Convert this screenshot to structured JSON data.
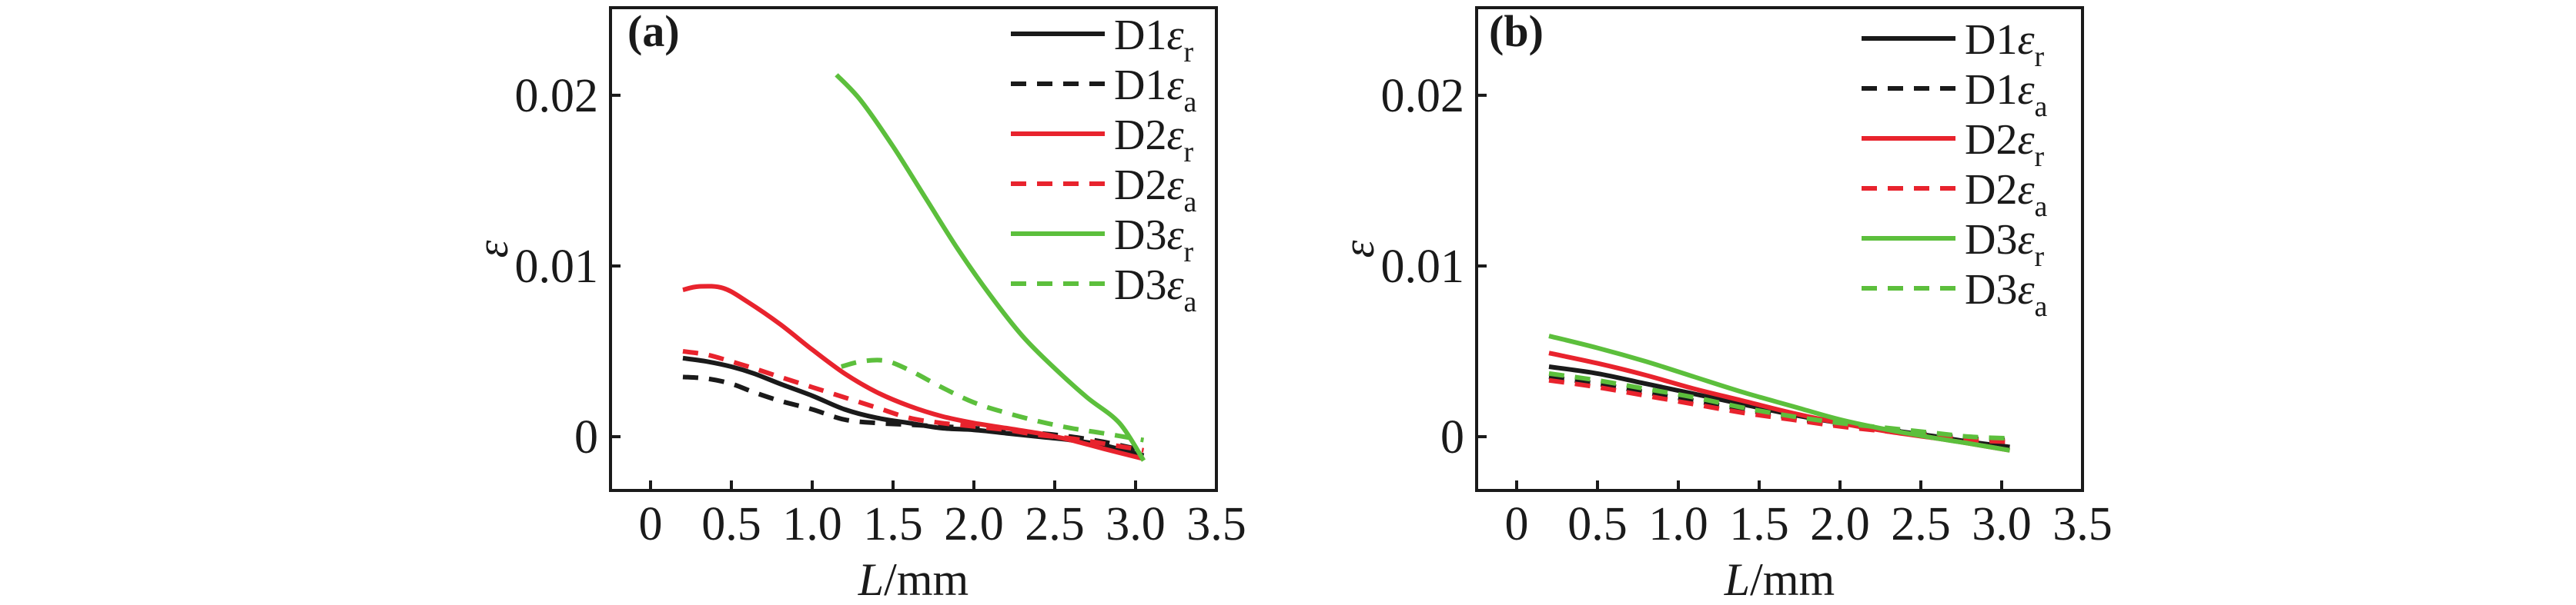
{
  "figure": {
    "background": "#ffffff",
    "text_color": "#1a1a1a",
    "accent_red": "#e8232d",
    "accent_green": "#5cbf3c",
    "accent_black": "#1a1a1a"
  },
  "chart_data": [
    {
      "type": "line",
      "panel_tag": "(a)",
      "title": "",
      "xlabel": "L/mm",
      "xlabel_parts": {
        "var": "L",
        "sep": "/",
        "unit": "mm"
      },
      "ylabel": "ε",
      "xlim": [
        -0.2476,
        3.5
      ],
      "ylim": [
        -0.00315,
        0.02513
      ],
      "grid": false,
      "legend_position": "top-right-inside",
      "xticks": {
        "values": [
          0,
          0.5,
          1.0,
          1.5,
          2.0,
          2.5,
          3.0,
          3.5
        ],
        "labels": [
          "0",
          "0.5",
          "1.0",
          "1.5",
          "2.0",
          "2.5",
          "3.0",
          "3.5"
        ]
      },
      "yticks": {
        "values": [
          0,
          0.01,
          0.02
        ],
        "labels": [
          "0",
          "0.01",
          "0.02"
        ]
      },
      "series": [
        {
          "name": "D1εr",
          "base": "D1",
          "symbol": "ε",
          "subscript": "r",
          "color": "#1a1a1a",
          "linestyle": "solid",
          "points": [
            [
              0.2,
              0.0046
            ],
            [
              0.35,
              0.0044
            ],
            [
              0.5,
              0.0041
            ],
            [
              0.64,
              0.0037
            ],
            [
              0.8,
              0.0031
            ],
            [
              1.0,
              0.0024
            ],
            [
              1.2,
              0.0016
            ],
            [
              1.4,
              0.0011
            ],
            [
              1.6,
              0.0008
            ],
            [
              1.8,
              0.0005
            ],
            [
              2.0,
              0.0004
            ],
            [
              2.2,
              0.0002
            ],
            [
              2.4,
              0.0
            ],
            [
              2.6,
              -0.0002
            ],
            [
              2.8,
              -0.0005
            ],
            [
              3.05,
              -0.0011
            ]
          ]
        },
        {
          "name": "D1εa",
          "base": "D1",
          "symbol": "ε",
          "subscript": "a",
          "color": "#1a1a1a",
          "linestyle": "dashed",
          "points": [
            [
              0.2,
              0.0035
            ],
            [
              0.35,
              0.0034
            ],
            [
              0.5,
              0.0031
            ],
            [
              0.64,
              0.0026
            ],
            [
              0.8,
              0.0021
            ],
            [
              1.0,
              0.0016
            ],
            [
              1.2,
              0.001
            ],
            [
              1.4,
              0.0008
            ],
            [
              1.6,
              0.0007
            ],
            [
              1.8,
              0.0006
            ],
            [
              2.0,
              0.0005
            ],
            [
              2.2,
              0.0003
            ],
            [
              2.4,
              0.0002
            ],
            [
              2.6,
              0.0
            ],
            [
              2.8,
              -0.0003
            ],
            [
              3.05,
              -0.0008
            ]
          ]
        },
        {
          "name": "D2εr",
          "base": "D2",
          "symbol": "ε",
          "subscript": "r",
          "color": "#e8232d",
          "linestyle": "solid",
          "points": [
            [
              0.2,
              0.0086
            ],
            [
              0.3,
              0.0088
            ],
            [
              0.45,
              0.0087
            ],
            [
              0.6,
              0.0079
            ],
            [
              0.8,
              0.0066
            ],
            [
              1.0,
              0.0051
            ],
            [
              1.2,
              0.0037
            ],
            [
              1.4,
              0.0026
            ],
            [
              1.6,
              0.0018
            ],
            [
              1.8,
              0.0012
            ],
            [
              2.0,
              0.0008
            ],
            [
              2.2,
              0.0005
            ],
            [
              2.4,
              0.0002
            ],
            [
              2.6,
              -0.0002
            ],
            [
              2.8,
              -0.0007
            ],
            [
              3.05,
              -0.0013
            ]
          ]
        },
        {
          "name": "D2εa",
          "base": "D2",
          "symbol": "ε",
          "subscript": "a",
          "color": "#e8232d",
          "linestyle": "dashed",
          "points": [
            [
              0.2,
              0.005
            ],
            [
              0.35,
              0.0048
            ],
            [
              0.5,
              0.0044
            ],
            [
              0.64,
              0.004
            ],
            [
              0.8,
              0.0035
            ],
            [
              1.0,
              0.0029
            ],
            [
              1.2,
              0.0023
            ],
            [
              1.4,
              0.0017
            ],
            [
              1.6,
              0.0011
            ],
            [
              1.8,
              0.0008
            ],
            [
              2.0,
              0.0006
            ],
            [
              2.2,
              0.0004
            ],
            [
              2.4,
              0.0001
            ],
            [
              2.6,
              -0.0001
            ],
            [
              2.8,
              -0.0004
            ],
            [
              3.05,
              -0.0008
            ]
          ]
        },
        {
          "name": "D3εr",
          "base": "D3",
          "symbol": "ε",
          "subscript": "r",
          "color": "#5cbf3c",
          "linestyle": "solid",
          "points": [
            [
              1.15,
              0.0212
            ],
            [
              1.3,
              0.0197
            ],
            [
              1.5,
              0.017
            ],
            [
              1.7,
              0.014
            ],
            [
              1.9,
              0.011
            ],
            [
              2.1,
              0.0083
            ],
            [
              2.3,
              0.0059
            ],
            [
              2.5,
              0.004
            ],
            [
              2.7,
              0.0023
            ],
            [
              2.9,
              0.0008
            ],
            [
              3.05,
              -0.0014
            ]
          ]
        },
        {
          "name": "D3εa",
          "base": "D3",
          "symbol": "ε",
          "subscript": "a",
          "color": "#5cbf3c",
          "linestyle": "dashed",
          "points": [
            [
              1.18,
              0.0041
            ],
            [
              1.3,
              0.0044
            ],
            [
              1.45,
              0.00445
            ],
            [
              1.6,
              0.0039
            ],
            [
              1.8,
              0.0029
            ],
            [
              2.0,
              0.002
            ],
            [
              2.2,
              0.0014
            ],
            [
              2.4,
              0.0009
            ],
            [
              2.6,
              0.0005
            ],
            [
              2.8,
              0.0002
            ],
            [
              3.05,
              -0.0002
            ]
          ]
        }
      ]
    },
    {
      "type": "line",
      "panel_tag": "(b)",
      "title": "",
      "xlabel": "L/mm",
      "xlabel_parts": {
        "var": "L",
        "sep": "/",
        "unit": "mm"
      },
      "ylabel": "ε",
      "xlim": [
        -0.2476,
        3.5
      ],
      "ylim": [
        -0.00315,
        0.02513
      ],
      "grid": false,
      "legend_position": "top-right-inside",
      "xticks": {
        "values": [
          0,
          0.5,
          1.0,
          1.5,
          2.0,
          2.5,
          3.0,
          3.5
        ],
        "labels": [
          "0",
          "0.5",
          "1.0",
          "1.5",
          "2.0",
          "2.5",
          "3.0",
          "3.5"
        ]
      },
      "yticks": {
        "values": [
          0,
          0.01,
          0.02
        ],
        "labels": [
          "0",
          "0.01",
          "0.02"
        ]
      },
      "series": [
        {
          "name": "D1εr",
          "base": "D1",
          "symbol": "ε",
          "subscript": "r",
          "color": "#1a1a1a",
          "linestyle": "solid",
          "points": [
            [
              0.2,
              0.0041
            ],
            [
              0.5,
              0.0037
            ],
            [
              0.8,
              0.0031
            ],
            [
              1.1,
              0.0025
            ],
            [
              1.4,
              0.0019
            ],
            [
              1.7,
              0.0013
            ],
            [
              2.0,
              0.0008
            ],
            [
              2.3,
              0.0004
            ],
            [
              2.6,
              0.0
            ],
            [
              2.8,
              -0.0003
            ],
            [
              3.05,
              -0.0006
            ]
          ]
        },
        {
          "name": "D1εa",
          "base": "D1",
          "symbol": "ε",
          "subscript": "a",
          "color": "#1a1a1a",
          "linestyle": "dashed",
          "points": [
            [
              0.2,
              0.0035
            ],
            [
              0.5,
              0.0031
            ],
            [
              0.8,
              0.0026
            ],
            [
              1.1,
              0.0021
            ],
            [
              1.4,
              0.0016
            ],
            [
              1.7,
              0.0011
            ],
            [
              2.0,
              0.0007
            ],
            [
              2.3,
              0.0004
            ],
            [
              2.6,
              0.0001
            ],
            [
              2.8,
              -0.0001
            ],
            [
              3.05,
              -0.0002
            ]
          ]
        },
        {
          "name": "D2εr",
          "base": "D2",
          "symbol": "ε",
          "subscript": "r",
          "color": "#e8232d",
          "linestyle": "solid",
          "points": [
            [
              0.2,
              0.0049
            ],
            [
              0.5,
              0.0043
            ],
            [
              0.8,
              0.0036
            ],
            [
              1.1,
              0.0028
            ],
            [
              1.4,
              0.0021
            ],
            [
              1.7,
              0.0014
            ],
            [
              2.0,
              0.0008
            ],
            [
              2.3,
              0.0003
            ],
            [
              2.6,
              -0.0001
            ],
            [
              2.8,
              -0.0004
            ],
            [
              3.05,
              -0.0008
            ]
          ]
        },
        {
          "name": "D2εa",
          "base": "D2",
          "symbol": "ε",
          "subscript": "a",
          "color": "#e8232d",
          "linestyle": "dashed",
          "points": [
            [
              0.2,
              0.0033
            ],
            [
              0.5,
              0.0029
            ],
            [
              0.8,
              0.0024
            ],
            [
              1.1,
              0.0019
            ],
            [
              1.4,
              0.0014
            ],
            [
              1.7,
              0.001
            ],
            [
              2.0,
              0.0006
            ],
            [
              2.3,
              0.0003
            ],
            [
              2.6,
              0.0
            ],
            [
              2.8,
              -0.0002
            ],
            [
              3.05,
              -0.0003
            ]
          ]
        },
        {
          "name": "D3εr",
          "base": "D3",
          "symbol": "ε",
          "subscript": "r",
          "color": "#5cbf3c",
          "linestyle": "solid",
          "points": [
            [
              0.2,
              0.0059
            ],
            [
              0.5,
              0.0052
            ],
            [
              0.8,
              0.0044
            ],
            [
              1.1,
              0.0035
            ],
            [
              1.4,
              0.0026
            ],
            [
              1.7,
              0.0018
            ],
            [
              2.0,
              0.001
            ],
            [
              2.3,
              0.0004
            ],
            [
              2.6,
              -0.0001
            ],
            [
              2.8,
              -0.0004
            ],
            [
              3.05,
              -0.0008
            ]
          ]
        },
        {
          "name": "D3εa",
          "base": "D3",
          "symbol": "ε",
          "subscript": "a",
          "color": "#5cbf3c",
          "linestyle": "dashed",
          "points": [
            [
              0.2,
              0.0037
            ],
            [
              0.5,
              0.0033
            ],
            [
              0.8,
              0.0028
            ],
            [
              1.1,
              0.0023
            ],
            [
              1.4,
              0.0017
            ],
            [
              1.7,
              0.0012
            ],
            [
              2.0,
              0.0008
            ],
            [
              2.3,
              0.0005
            ],
            [
              2.6,
              0.0002
            ],
            [
              2.8,
              0.0
            ],
            [
              3.05,
              -0.0001
            ]
          ]
        }
      ]
    }
  ]
}
